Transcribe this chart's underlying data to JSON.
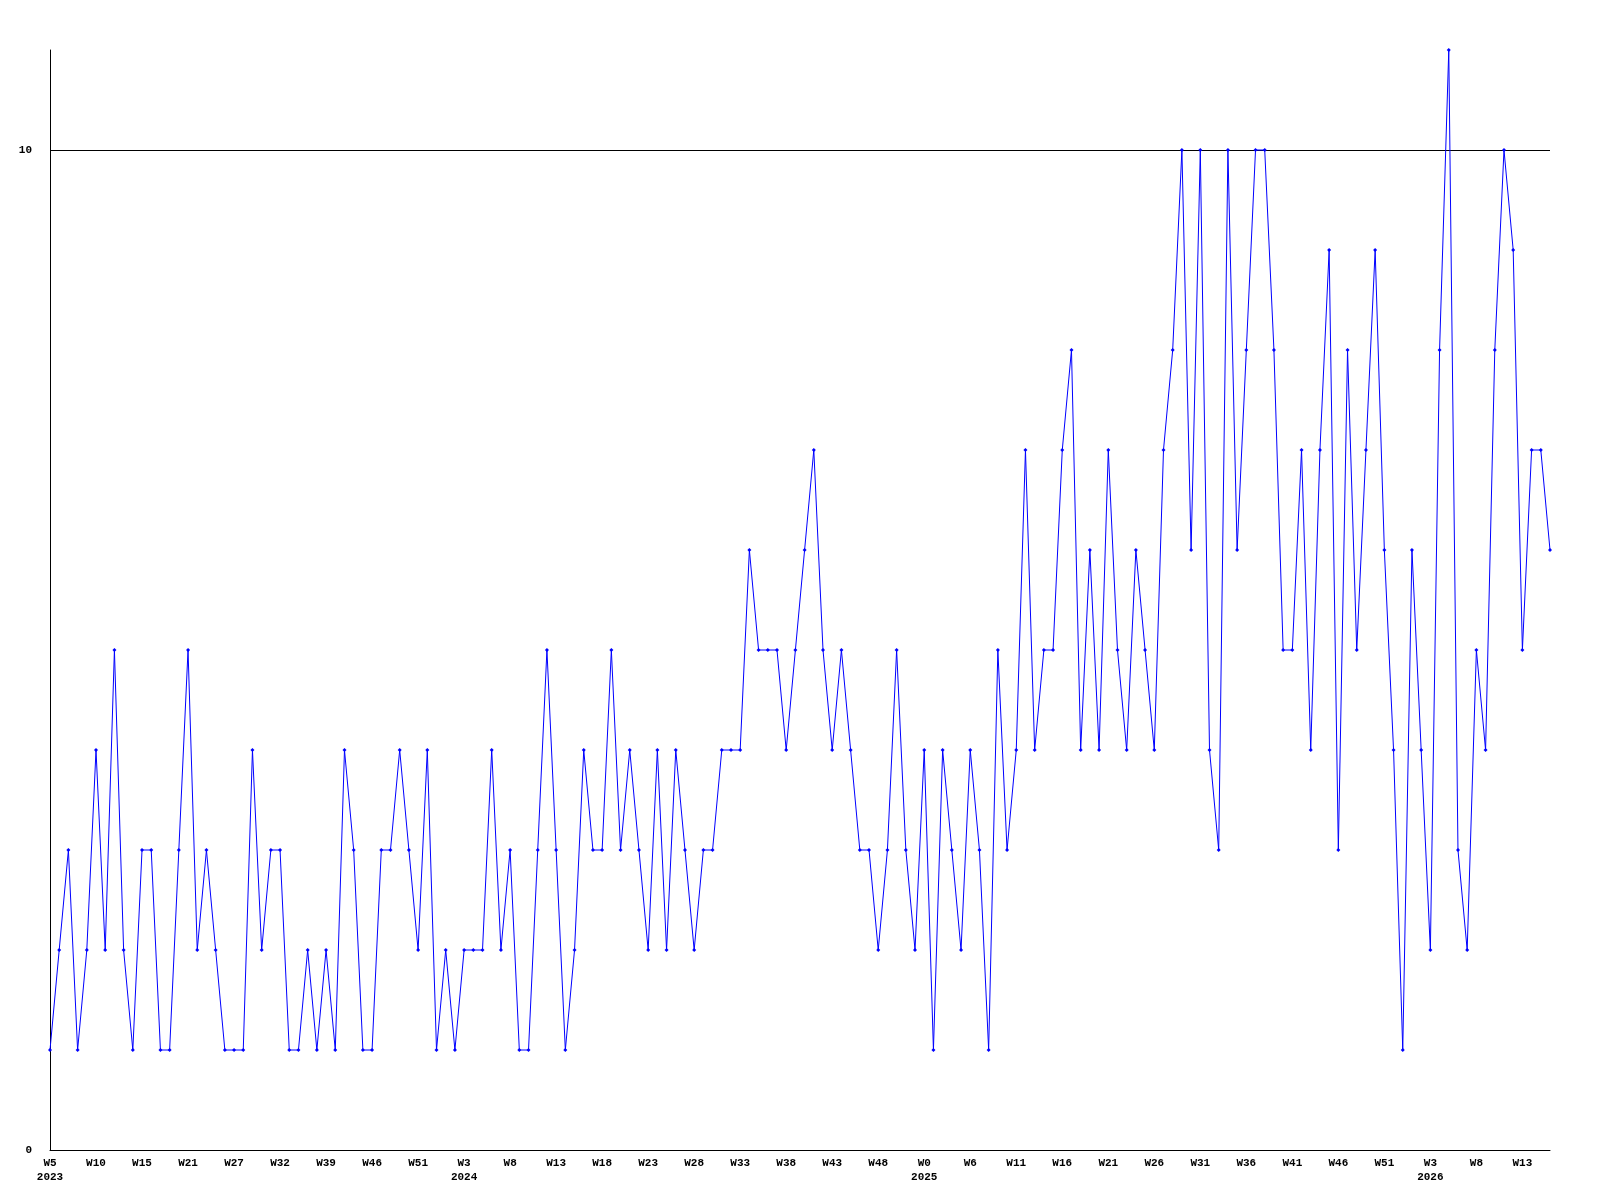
{
  "chart_data": {
    "type": "line",
    "categories": [
      "W5\n2023",
      null,
      null,
      null,
      null,
      "W10",
      null,
      null,
      null,
      null,
      "W15",
      null,
      null,
      null,
      null,
      "W21",
      null,
      null,
      null,
      null,
      "W27",
      null,
      null,
      null,
      null,
      "W32",
      null,
      null,
      null,
      null,
      "W39",
      null,
      null,
      null,
      null,
      "W46",
      null,
      null,
      null,
      null,
      "W51",
      null,
      null,
      null,
      null,
      "W3\n2024",
      null,
      null,
      null,
      null,
      "W8",
      null,
      null,
      null,
      null,
      "W13",
      null,
      null,
      null,
      null,
      "W18",
      null,
      null,
      null,
      null,
      "W23",
      null,
      null,
      null,
      null,
      "W28",
      null,
      null,
      null,
      null,
      "W33",
      null,
      null,
      null,
      null,
      "W38",
      null,
      null,
      null,
      null,
      "W43",
      null,
      null,
      null,
      null,
      "W48",
      null,
      null,
      null,
      null,
      "W0\n2025",
      null,
      null,
      null,
      null,
      "W6",
      null,
      null,
      null,
      null,
      "W11",
      null,
      null,
      null,
      null,
      "W16",
      null,
      null,
      null,
      null,
      "W21",
      null,
      null,
      null,
      null,
      "W26",
      null,
      null,
      null,
      null,
      "W31",
      null,
      null,
      null,
      null,
      "W36",
      null,
      null,
      null,
      null,
      "W41",
      null,
      null,
      null,
      null,
      "W46",
      null,
      null,
      null,
      null,
      "W51",
      null,
      null,
      null,
      null,
      "W3\n2026",
      null,
      null,
      null,
      null,
      "W8",
      null,
      null,
      null,
      null,
      "W13",
      null,
      null,
      null
    ],
    "series": [
      {
        "color": "#0000ff",
        "values": [
          1,
          2,
          3,
          1,
          2,
          4,
          2,
          5,
          2,
          1,
          3,
          3,
          1,
          1,
          3,
          5,
          2,
          3,
          2,
          1,
          1,
          1,
          4,
          2,
          3,
          3,
          1,
          1,
          2,
          1,
          2,
          1,
          4,
          3,
          1,
          1,
          3,
          3,
          4,
          3,
          2,
          4,
          1,
          2,
          1,
          2,
          2,
          2,
          4,
          2,
          3,
          1,
          1,
          3,
          5,
          3,
          1,
          2,
          4,
          3,
          3,
          5,
          3,
          4,
          3,
          2,
          4,
          2,
          4,
          3,
          2,
          3,
          3,
          4,
          4,
          4,
          6,
          5,
          5,
          5,
          4,
          5,
          6,
          7,
          5,
          4,
          5,
          4,
          3,
          3,
          2,
          3,
          5,
          3,
          2,
          4,
          1,
          4,
          3,
          2,
          4,
          3,
          1,
          5,
          3,
          4,
          7,
          4,
          5,
          5,
          7,
          8,
          4,
          6,
          4,
          7,
          5,
          4,
          6,
          5,
          4,
          7,
          8,
          10,
          6,
          10,
          4,
          3,
          10,
          6,
          8,
          10,
          10,
          8,
          5,
          5,
          7,
          4,
          7,
          9,
          3,
          8,
          5,
          7,
          9,
          6,
          4,
          1,
          6,
          4,
          2,
          8,
          11,
          3,
          2,
          5,
          4,
          8,
          10,
          9,
          5,
          7,
          7,
          6
        ]
      }
    ],
    "ylim": [
      0,
      11
    ],
    "yticks": [
      0,
      10
    ],
    "grid": "y",
    "marker": "diamond",
    "line_style": "solid"
  }
}
